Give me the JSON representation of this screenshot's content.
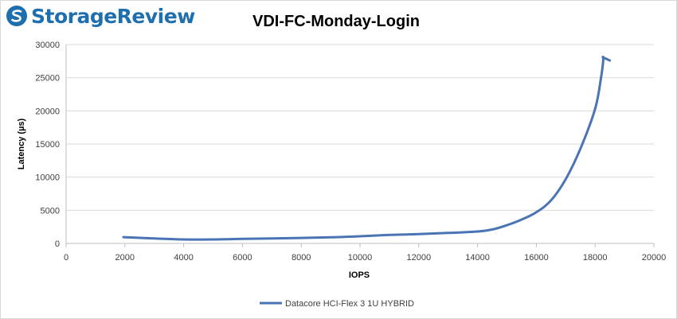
{
  "logo": {
    "text": "StorageReview"
  },
  "chart_data": {
    "type": "line",
    "title": "VDI-FC-Monday-Login",
    "xlabel": "IOPS",
    "ylabel": "Latency (µs)",
    "xlim": [
      0,
      20000
    ],
    "ylim": [
      0,
      30000
    ],
    "xticks": [
      0,
      2000,
      4000,
      6000,
      8000,
      10000,
      12000,
      14000,
      16000,
      18000,
      20000
    ],
    "yticks": [
      0,
      5000,
      10000,
      15000,
      20000,
      25000,
      30000
    ],
    "grid": true,
    "legend_position": "bottom",
    "series": [
      {
        "name": "Datacore HCI-Flex 3 1U HYBRID",
        "color": "#4a74b4",
        "x": [
          1950,
          3000,
          4000,
          5000,
          6000,
          7000,
          8000,
          9000,
          10000,
          11000,
          12000,
          13000,
          14000,
          14500,
          15000,
          15500,
          16000,
          16500,
          17000,
          17500,
          18000,
          18200,
          18280,
          18260,
          18350,
          18500
        ],
        "y": [
          950,
          750,
          600,
          600,
          680,
          750,
          830,
          920,
          1080,
          1280,
          1400,
          1580,
          1800,
          2100,
          2750,
          3600,
          4700,
          6500,
          9700,
          14300,
          20300,
          25000,
          27800,
          28100,
          27900,
          27600
        ]
      }
    ]
  }
}
